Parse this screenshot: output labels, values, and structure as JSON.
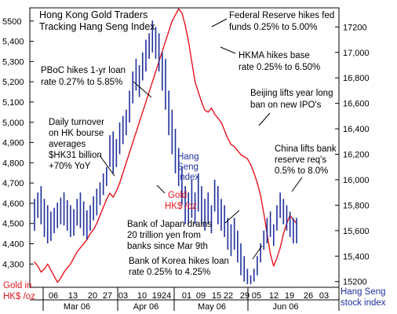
{
  "chart_data": {
    "type": "line",
    "title_lines": [
      "Hong Kong Gold Traders",
      "Tracking Hang Seng Index"
    ],
    "left_axis": {
      "label_lines": [
        "Gold in",
        "HK$ /oz"
      ],
      "ticks": [
        {
          "value": 4300,
          "label": "4,300"
        },
        {
          "value": 4400,
          "label": "4,400"
        },
        {
          "value": 4500,
          "label": "4,500"
        },
        {
          "value": 4600,
          "label": "4,600"
        },
        {
          "value": 4700,
          "label": "4,700"
        },
        {
          "value": 4800,
          "label": "4,800"
        },
        {
          "value": 4900,
          "label": "4,900"
        },
        {
          "value": 5000,
          "label": "5,000"
        },
        {
          "value": 5100,
          "label": "5,100"
        },
        {
          "value": 5200,
          "label": "5,200"
        },
        {
          "value": 5300,
          "label": "5,300"
        },
        {
          "value": 5400,
          "label": "5,400"
        },
        {
          "value": 5500,
          "label": "5500"
        }
      ],
      "range": [
        4185,
        5565
      ]
    },
    "right_axis": {
      "label_lines": [
        "Hang Seng",
        "stock index"
      ],
      "ticks": [
        {
          "value": 15200,
          "label": "15200"
        },
        {
          "value": 15400,
          "label": "15,400"
        },
        {
          "value": 15600,
          "label": "15,600"
        },
        {
          "value": 15800,
          "label": "15,800"
        },
        {
          "value": 16000,
          "label": "16,000"
        },
        {
          "value": 16200,
          "label": "16,200"
        },
        {
          "value": 16400,
          "label": "16,400"
        },
        {
          "value": 16600,
          "label": "16,600"
        },
        {
          "value": 16800,
          "label": "16,800"
        },
        {
          "value": 17000,
          "label": "17,000"
        },
        {
          "value": 17200,
          "label": "17200"
        }
      ],
      "range": [
        15155,
        17350
      ]
    },
    "x_axis": {
      "day_labels": [
        "06",
        "13",
        "20",
        "27",
        "03",
        "10",
        "1924",
        "01",
        "09",
        "15",
        "22",
        "29",
        "05",
        "12",
        "19",
        "26",
        "03"
      ],
      "month_labels": [
        "Mar 06",
        "Apr 06",
        "May 06",
        "Jun 06"
      ]
    },
    "series": [
      {
        "name": "Gold HK$ /oz",
        "label_lines": [
          "Gold",
          "HK$ /oz"
        ],
        "color": "#e8141e",
        "x": [
          0,
          1,
          2,
          3,
          4,
          5,
          6,
          7,
          8,
          9,
          10,
          11,
          12,
          13,
          14,
          15,
          16,
          17,
          18,
          19,
          20,
          21,
          22,
          23,
          24,
          25,
          26,
          27,
          28,
          29,
          30,
          31,
          32,
          33,
          34,
          35,
          36,
          37,
          38,
          39,
          40,
          41,
          42,
          43,
          44,
          45,
          46,
          47,
          48,
          49,
          50,
          51,
          52,
          53,
          54,
          55,
          56,
          57,
          58,
          59,
          60,
          61,
          62,
          63,
          64,
          65,
          66,
          67,
          68,
          69,
          70,
          71,
          72,
          73,
          74,
          75,
          76,
          77,
          78,
          79,
          80
        ],
        "values": [
          4310,
          4290,
          4260,
          4275,
          4300,
          4270,
          4240,
          4210,
          4230,
          4260,
          4280,
          4300,
          4330,
          4360,
          4380,
          4400,
          4420,
          4450,
          4470,
          4500,
          4540,
          4580,
          4620,
          4650,
          4630,
          4660,
          4700,
          4750,
          4800,
          4850,
          4900,
          4950,
          5000,
          5050,
          5100,
          5150,
          5200,
          5250,
          5300,
          5350,
          5400,
          5450,
          5500,
          5530,
          5560,
          5540,
          5480,
          5400,
          5300,
          5200,
          5150,
          5100,
          5060,
          5050,
          5070,
          5040,
          5020,
          5000,
          4960,
          4920,
          4890,
          4880,
          4860,
          4840,
          4830,
          4820,
          4790,
          4750,
          4700,
          4640,
          4550,
          4450,
          4350,
          4290,
          4330,
          4380,
          4450,
          4500,
          4540,
          4520,
          4500
        ]
      },
      {
        "name": "Hang Seng Index",
        "label_lines": [
          "Hang",
          "Seng",
          "Index"
        ],
        "color": "#1f2f9c",
        "x": [
          0,
          1,
          2,
          3,
          4,
          5,
          6,
          7,
          8,
          9,
          10,
          11,
          12,
          13,
          14,
          15,
          16,
          17,
          18,
          19,
          20,
          21,
          22,
          23,
          24,
          25,
          26,
          27,
          28,
          29,
          30,
          31,
          32,
          33,
          34,
          35,
          36,
          37,
          38,
          39,
          40,
          41,
          42,
          43,
          44,
          45,
          46,
          47,
          48,
          49,
          50,
          51,
          52,
          53,
          54,
          55,
          56,
          57,
          58,
          59,
          60,
          61,
          62,
          63,
          64,
          65,
          66,
          67,
          68,
          69,
          70,
          71,
          72,
          73,
          74,
          75,
          76,
          77,
          78,
          79,
          80
        ],
        "high": [
          15850,
          15900,
          15950,
          15850,
          15800,
          15750,
          15780,
          15820,
          15860,
          15900,
          15840,
          15800,
          15770,
          15850,
          15900,
          15830,
          15760,
          15800,
          15870,
          15930,
          15980,
          16050,
          16100,
          16350,
          16380,
          16320,
          16450,
          16500,
          16550,
          16700,
          16850,
          16950,
          16900,
          17000,
          17100,
          17150,
          17250,
          17200,
          17150,
          17000,
          16950,
          16700,
          16550,
          16400,
          16250,
          16100,
          15950,
          15900,
          16000,
          15900,
          16050,
          15950,
          15850,
          15900,
          15800,
          16000,
          15950,
          15850,
          15800,
          15700,
          15650,
          15700,
          15600,
          15500,
          15400,
          15300,
          15250,
          15300,
          15400,
          15500,
          15600,
          15700,
          15750,
          15650,
          15800,
          15900,
          15850,
          15800,
          15750,
          15700,
          15700
        ],
        "low": [
          15600,
          15700,
          15650,
          15550,
          15500,
          15520,
          15580,
          15620,
          15650,
          15640,
          15600,
          15550,
          15560,
          15640,
          15620,
          15560,
          15530,
          15600,
          15680,
          15720,
          15800,
          15880,
          15950,
          16100,
          16050,
          16100,
          16200,
          16280,
          16350,
          16450,
          16600,
          16700,
          16650,
          16780,
          16850,
          16950,
          17000,
          16950,
          16850,
          16700,
          16550,
          16350,
          16200,
          16050,
          15950,
          15800,
          15650,
          15650,
          15700,
          15650,
          15750,
          15650,
          15600,
          15650,
          15580,
          15750,
          15650,
          15600,
          15550,
          15450,
          15400,
          15450,
          15350,
          15250,
          15200,
          15180,
          15180,
          15200,
          15250,
          15350,
          15450,
          15500,
          15550,
          15480,
          15600,
          15700,
          15650,
          15600,
          15550,
          15500,
          15500
        ]
      }
    ],
    "annotations": {
      "fed": [
        "Federal Reserve hikes fed",
        "funds 0.25% to 5.00%"
      ],
      "hkma": [
        "HKMA hikes base",
        "rate 0.25% to 6.50%"
      ],
      "pboc": [
        "PBoC hikes 1-yr loan",
        "rate 0.27% to 5.85%"
      ],
      "beijing": [
        "Beijing lifts year long",
        "ban on new IPO's"
      ],
      "turnover": [
        "Daily turnover",
        "on HK bourse",
        "averages",
        "$HK31 billion",
        "+70% YoY"
      ],
      "china": [
        "China lifts bank",
        "reserve req's",
        "0.5% to 8.0%"
      ],
      "boj": [
        "Bank of Japan drains",
        "20 trillion yen from",
        "banks since Mar 9th"
      ],
      "bok": [
        "Bank of Korea hikes loan",
        "rate 0.25% to 4.25%"
      ]
    },
    "grid": false,
    "legend": "inline labels"
  }
}
